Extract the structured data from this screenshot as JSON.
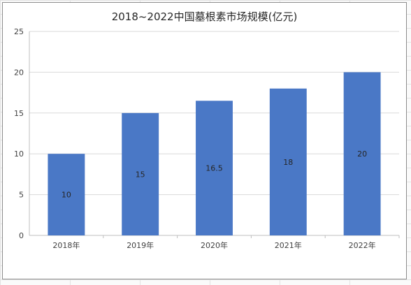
{
  "chart_data": {
    "type": "bar",
    "title": "2018~2022中国墓根素市场规模(亿元)",
    "categories": [
      "2018年",
      "2019年",
      "2020年",
      "2021年",
      "2022年"
    ],
    "values": [
      10,
      15,
      16.5,
      18,
      20
    ],
    "data_labels": [
      "10",
      "15",
      "16.5",
      "18",
      "20"
    ],
    "ylim": [
      0,
      25
    ],
    "yticks": [
      0,
      5,
      10,
      15,
      20,
      25
    ],
    "xlabel": "",
    "ylabel": "",
    "grid": true,
    "legend": "none",
    "bar_color": "#4a78c6",
    "grid_color": "#d9d9d9",
    "axis_color": "#bfbfbf"
  }
}
